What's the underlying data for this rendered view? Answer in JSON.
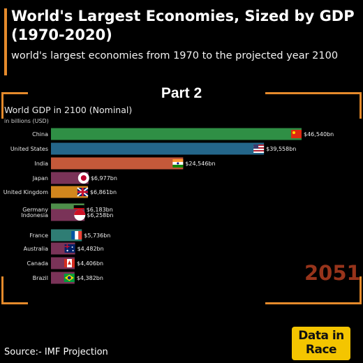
{
  "header": {
    "title": "World's Largest Economies, Sized by GDP (1970-2020)",
    "subtitle": "world's largest economies from 1970 to the projected year 2100",
    "part_label": "Part 2"
  },
  "footer": {
    "source": "Source:- IMF Projection",
    "logo_line1": "Data in",
    "logo_line2": "Race"
  },
  "colors": {
    "accent": "#e58a2b",
    "year_color": "#a83a1f",
    "logo_bg": "#f4c500"
  },
  "year_overlay": "2051",
  "chart_data": {
    "type": "bar",
    "orientation": "horizontal",
    "title": "World GDP in 2100 (Nominal)",
    "units": "in billions (USD)",
    "categories": [
      "China",
      "United States",
      "India",
      "Japan",
      "United Kingdom",
      "Germany",
      "Indonesia",
      "France",
      "Australia",
      "Canada",
      "Brazil"
    ],
    "values": [
      46540,
      39558,
      24546,
      6977,
      6861,
      6183,
      6258,
      5736,
      4482,
      4406,
      4382
    ],
    "value_labels": [
      "$46,540bn",
      "$39,558bn",
      "$24,546bn",
      "$6,977bn",
      "$6,861bn",
      "$6,183bn",
      "$6,258bn",
      "$5,736bn",
      "$4,482bn",
      "$4,406bn",
      "$4,382bn"
    ],
    "bar_colors": [
      "#2f8f45",
      "#24668a",
      "#c4593a",
      "#7a3358",
      "#d1861d",
      "#4e8f4a",
      "#7a3358",
      "#2f7d74",
      "#7a3358",
      "#7a3358",
      "#7a3358"
    ],
    "flags": [
      "china-flag-icon",
      "usa-flag-icon",
      "india-flag-icon",
      "japan-flag-icon",
      "uk-flag-icon",
      "germany-flag-icon",
      "indonesia-flag-icon",
      "france-flag-icon",
      "australia-flag-icon",
      "canada-flag-icon",
      "brazil-flag-icon"
    ],
    "xlim": [
      0,
      46540
    ]
  }
}
